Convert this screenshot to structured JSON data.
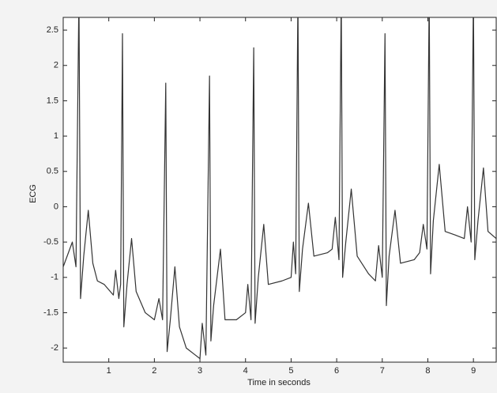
{
  "chart_data": {
    "type": "line",
    "x_label": "Time in seconds",
    "y_label": "ECG",
    "color": "#333333",
    "xlim": [
      0,
      9.5
    ],
    "ylim": [
      -2.2,
      2.68
    ],
    "xticks": [
      1,
      2,
      3,
      4,
      5,
      6,
      7,
      8,
      9
    ],
    "yticks": [
      -2,
      -1.5,
      -1,
      -0.5,
      0,
      0.5,
      1,
      1.5,
      2,
      2.5
    ],
    "x": [
      0,
      0.2,
      0.28,
      0.345,
      0.38,
      0.45,
      0.55,
      0.65,
      0.75,
      0.9,
      1.1,
      1.15,
      1.22,
      1.26,
      1.3,
      1.33,
      1.4,
      1.5,
      1.6,
      1.8,
      2.0,
      2.1,
      2.18,
      2.25,
      2.28,
      2.35,
      2.45,
      2.55,
      2.7,
      2.9,
      3.0,
      3.05,
      3.13,
      3.21,
      3.24,
      3.3,
      3.45,
      3.55,
      3.8,
      4.0,
      4.05,
      4.12,
      4.18,
      4.21,
      4.28,
      4.4,
      4.5,
      4.8,
      5.0,
      5.05,
      5.1,
      5.15,
      5.18,
      5.25,
      5.38,
      5.5,
      5.8,
      5.9,
      5.97,
      6.05,
      6.1,
      6.13,
      6.2,
      6.32,
      6.45,
      6.7,
      6.85,
      6.92,
      7.0,
      7.06,
      7.09,
      7.15,
      7.28,
      7.4,
      7.7,
      7.82,
      7.9,
      7.98,
      8.03,
      8.06,
      8.12,
      8.25,
      8.38,
      8.6,
      8.8,
      8.87,
      8.95,
      9.0,
      9.03,
      9.1,
      9.22,
      9.32,
      9.5
    ],
    "values": [
      -0.85,
      -0.5,
      -0.85,
      3.0,
      -1.3,
      -0.7,
      -0.05,
      -0.8,
      -1.05,
      -1.1,
      -1.25,
      -0.9,
      -1.3,
      -1.1,
      2.45,
      -1.7,
      -1.1,
      -0.45,
      -1.2,
      -1.5,
      -1.6,
      -1.3,
      -1.6,
      1.75,
      -2.05,
      -1.6,
      -0.85,
      -1.7,
      -2.0,
      -2.1,
      -2.15,
      -1.65,
      -2.1,
      1.85,
      -1.9,
      -1.4,
      -0.6,
      -1.6,
      -1.6,
      -1.5,
      -1.1,
      -1.6,
      2.25,
      -1.65,
      -1.0,
      -0.25,
      -1.1,
      -1.05,
      -1.0,
      -0.5,
      -0.95,
      3.0,
      -1.2,
      -0.6,
      0.05,
      -0.7,
      -0.65,
      -0.6,
      -0.15,
      -0.75,
      3.0,
      -1.0,
      -0.5,
      0.25,
      -0.7,
      -0.95,
      -1.05,
      -0.55,
      -1.0,
      2.45,
      -1.4,
      -0.7,
      -0.05,
      -0.8,
      -0.75,
      -0.65,
      -0.25,
      -0.6,
      3.0,
      -0.95,
      -0.2,
      0.6,
      -0.35,
      -0.4,
      -0.45,
      0.0,
      -0.5,
      3.0,
      -0.75,
      -0.2,
      0.55,
      -0.35,
      -0.45
    ]
  }
}
